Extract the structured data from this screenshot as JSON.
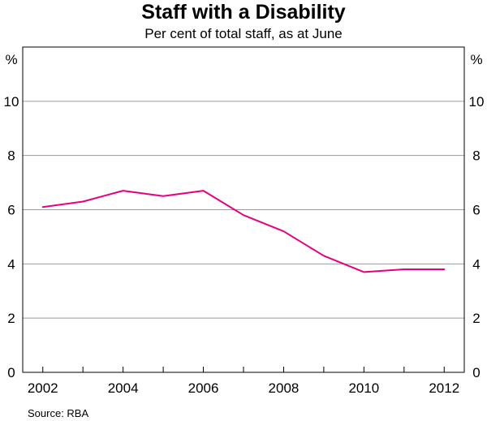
{
  "chart_data": {
    "type": "line",
    "title": "Staff with a Disability",
    "subtitle": "Per cent of total staff, as at June",
    "y_unit_left": "%",
    "y_unit_right": "%",
    "source": "Source: RBA",
    "xlim": [
      2001.5,
      2012.5
    ],
    "ylim": [
      0,
      12
    ],
    "x_ticks": [
      2002,
      2004,
      2006,
      2008,
      2010,
      2012
    ],
    "x_tick_labels": [
      "2002",
      "2004",
      "2006",
      "2008",
      "2010",
      "2012"
    ],
    "y_ticks": [
      0,
      2,
      4,
      6,
      8,
      10
    ],
    "y_tick_labels": [
      "0",
      "2",
      "4",
      "6",
      "8",
      "10"
    ],
    "grid": true,
    "series": [
      {
        "name": "Staff with a disability",
        "color": "#e6007e",
        "x": [
          2002,
          2003,
          2004,
          2005,
          2006,
          2007,
          2008,
          2009,
          2010,
          2011,
          2012
        ],
        "values": [
          6.1,
          6.3,
          6.7,
          6.5,
          6.7,
          5.8,
          5.2,
          4.3,
          3.7,
          3.8,
          3.8
        ]
      }
    ]
  }
}
